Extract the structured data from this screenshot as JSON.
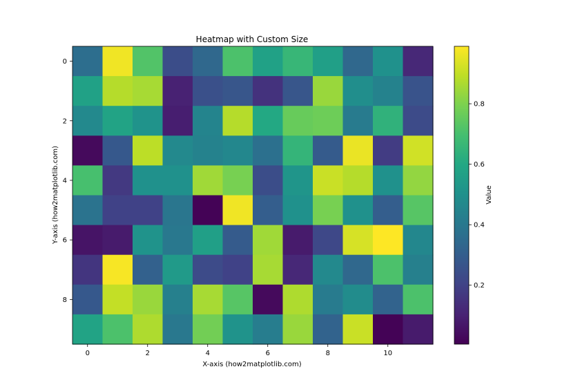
{
  "chart_data": {
    "type": "heatmap",
    "title": "Heatmap with Custom Size",
    "xlabel": "X-axis (how2matplotlib.com)",
    "ylabel": "Y-axis (how2matplotlib.com)",
    "colorbar_label": "Value",
    "colormap": "viridis",
    "vmin": 0.005,
    "vmax": 0.99,
    "x_ticks": [
      0,
      2,
      4,
      6,
      8,
      10
    ],
    "y_ticks": [
      0,
      2,
      4,
      6,
      8
    ],
    "colorbar_ticks": [
      0.2,
      0.4,
      0.6,
      0.8
    ],
    "n_rows": 10,
    "n_cols": 12,
    "values": [
      [
        0.36,
        0.97,
        0.72,
        0.24,
        0.34,
        0.71,
        0.57,
        0.66,
        0.56,
        0.34,
        0.5,
        0.12
      ],
      [
        0.57,
        0.88,
        0.86,
        0.1,
        0.25,
        0.27,
        0.15,
        0.27,
        0.84,
        0.49,
        0.44,
        0.26
      ],
      [
        0.47,
        0.58,
        0.51,
        0.09,
        0.45,
        0.88,
        0.6,
        0.76,
        0.77,
        0.41,
        0.64,
        0.23
      ],
      [
        0.03,
        0.28,
        0.89,
        0.47,
        0.44,
        0.46,
        0.37,
        0.65,
        0.29,
        0.96,
        0.18,
        0.92
      ],
      [
        0.7,
        0.17,
        0.5,
        0.5,
        0.85,
        0.79,
        0.24,
        0.52,
        0.91,
        0.88,
        0.5,
        0.83
      ],
      [
        0.38,
        0.2,
        0.2,
        0.39,
        0.01,
        0.97,
        0.3,
        0.5,
        0.79,
        0.5,
        0.3,
        0.73
      ],
      [
        0.06,
        0.08,
        0.51,
        0.4,
        0.56,
        0.29,
        0.85,
        0.08,
        0.22,
        0.93,
        0.99,
        0.46
      ],
      [
        0.16,
        0.98,
        0.31,
        0.54,
        0.23,
        0.2,
        0.86,
        0.12,
        0.47,
        0.34,
        0.71,
        0.43
      ],
      [
        0.28,
        0.9,
        0.84,
        0.43,
        0.86,
        0.73,
        0.03,
        0.87,
        0.41,
        0.48,
        0.32,
        0.71
      ],
      [
        0.58,
        0.71,
        0.87,
        0.4,
        0.78,
        0.51,
        0.42,
        0.84,
        0.32,
        0.91,
        0.01,
        0.08
      ]
    ]
  }
}
